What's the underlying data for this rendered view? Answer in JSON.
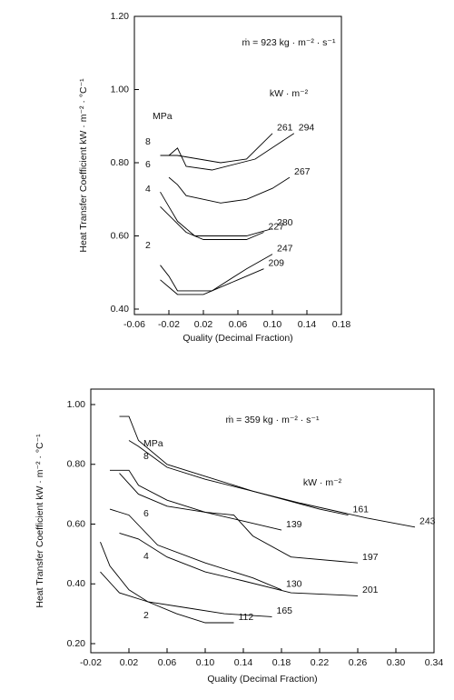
{
  "chart_data": [
    {
      "type": "line",
      "annotations": [
        "ṁ = 923 kg · m⁻² · s⁻¹",
        "kW · m⁻²",
        "MPa",
        "8",
        "6",
        "4",
        "2"
      ],
      "x_label": "Quality (Decimal Fraction)",
      "y_label": "Heat Transfer Coefficient kW · m⁻² · °C⁻¹",
      "xlim": [
        -0.06,
        0.18
      ],
      "xticks": [
        -0.06,
        -0.02,
        0.02,
        0.06,
        {
          "value": 0.1,
          "label": "0.10"
        },
        0.14,
        0.18
      ],
      "ylim": [
        0.4,
        1.2
      ],
      "yticks": [
        {
          "value": 0.4,
          "label": "0.40"
        },
        {
          "value": 0.6,
          "label": "0.60"
        },
        {
          "value": 0.8,
          "label": "0.80"
        },
        {
          "value": 1.0,
          "label": "1.00"
        },
        {
          "value": 1.2,
          "label": "1.20"
        }
      ],
      "series": [
        {
          "name": "261",
          "color": "#000000",
          "x": [
            -0.03,
            -0.01,
            0.04,
            0.07,
            0.1
          ],
          "values": [
            0.82,
            0.82,
            0.8,
            0.81,
            0.88
          ]
        },
        {
          "name": "294",
          "color": "#000000",
          "x": [
            -0.02,
            -0.01,
            0.0,
            0.03,
            0.08,
            0.125
          ],
          "values": [
            0.82,
            0.84,
            0.79,
            0.78,
            0.81,
            0.88
          ]
        },
        {
          "name": "267",
          "color": "#000000",
          "x": [
            -0.02,
            -0.01,
            0.0,
            0.04,
            0.07,
            0.1,
            0.12
          ],
          "values": [
            0.76,
            0.74,
            0.71,
            0.69,
            0.7,
            0.73,
            0.76
          ]
        },
        {
          "name": "280",
          "color": "#000000",
          "x": [
            -0.03,
            -0.02,
            -0.01,
            0.01,
            0.07,
            0.1
          ],
          "values": [
            0.72,
            0.68,
            0.64,
            0.6,
            0.6,
            0.62
          ]
        },
        {
          "name": "227",
          "color": "#000000",
          "x": [
            -0.03,
            0.0,
            0.02,
            0.07,
            0.09
          ],
          "values": [
            0.68,
            0.61,
            0.59,
            0.59,
            0.61
          ]
        },
        {
          "name": "247",
          "color": "#000000",
          "x": [
            -0.03,
            -0.02,
            -0.01,
            0.03,
            0.07,
            0.1
          ],
          "values": [
            0.52,
            0.49,
            0.45,
            0.45,
            0.51,
            0.55
          ]
        },
        {
          "name": "209",
          "color": "#000000",
          "x": [
            -0.03,
            -0.02,
            -0.01,
            0.02,
            0.06,
            0.09
          ],
          "values": [
            0.48,
            0.46,
            0.44,
            0.44,
            0.48,
            0.51
          ]
        }
      ]
    },
    {
      "type": "line",
      "annotations": [
        "ṁ = 359 kg · m⁻² · s⁻¹",
        "MPa",
        "8",
        "kW · m⁻²",
        "6",
        "4",
        "2"
      ],
      "x_label": "Quality (Decimal Fraction)",
      "y_label": "Heat Transfer Coefficient kW · m⁻² · °C⁻¹",
      "xlim": [
        -0.02,
        0.34
      ],
      "xticks": [
        -0.02,
        0.02,
        0.06,
        {
          "value": 0.1,
          "label": "0.10"
        },
        0.14,
        0.18,
        0.22,
        0.26,
        {
          "value": 0.3,
          "label": "0.30"
        },
        0.34
      ],
      "ylim": [
        0.2,
        1.0
      ],
      "yticks": [
        {
          "value": 0.2,
          "label": "0.20"
        },
        {
          "value": 0.4,
          "label": "0.40"
        },
        {
          "value": 0.6,
          "label": "0.60"
        },
        {
          "value": 0.8,
          "label": "0.80"
        },
        {
          "value": 1.0,
          "label": "1.00"
        }
      ],
      "series": [
        {
          "name": "161",
          "color": "#000000",
          "x": [
            0.01,
            0.02,
            0.03,
            0.06,
            0.1,
            0.15,
            0.22,
            0.25
          ],
          "values": [
            0.96,
            0.96,
            0.88,
            0.8,
            0.76,
            0.71,
            0.65,
            0.63
          ]
        },
        {
          "name": "243",
          "color": "#000000",
          "x": [
            0.02,
            0.03,
            0.06,
            0.1,
            0.15,
            0.2,
            0.27,
            0.32
          ],
          "values": [
            0.88,
            0.86,
            0.79,
            0.75,
            0.71,
            0.67,
            0.62,
            0.59
          ]
        },
        {
          "name": "139",
          "color": "#000000",
          "x": [
            0.0,
            0.02,
            0.03,
            0.06,
            0.1,
            0.14,
            0.18
          ],
          "values": [
            0.78,
            0.78,
            0.73,
            0.68,
            0.64,
            0.61,
            0.58
          ]
        },
        {
          "name": "197",
          "color": "#000000",
          "x": [
            0.01,
            0.03,
            0.06,
            0.1,
            0.13,
            0.15,
            0.19,
            0.26
          ],
          "values": [
            0.77,
            0.7,
            0.66,
            0.64,
            0.63,
            0.56,
            0.49,
            0.47
          ]
        },
        {
          "name": "130",
          "color": "#000000",
          "x": [
            0.0,
            0.02,
            0.05,
            0.1,
            0.15,
            0.18
          ],
          "values": [
            0.65,
            0.63,
            0.53,
            0.47,
            0.42,
            0.38
          ]
        },
        {
          "name": "201",
          "color": "#000000",
          "x": [
            0.01,
            0.03,
            0.06,
            0.1,
            0.14,
            0.19,
            0.26
          ],
          "values": [
            0.57,
            0.55,
            0.49,
            0.44,
            0.41,
            0.37,
            0.36
          ]
        },
        {
          "name": "165",
          "color": "#000000",
          "x": [
            -0.01,
            0.0,
            0.02,
            0.04,
            0.08,
            0.12,
            0.17
          ],
          "values": [
            0.54,
            0.46,
            0.38,
            0.34,
            0.32,
            0.3,
            0.29
          ]
        },
        {
          "name": "112",
          "color": "#000000",
          "x": [
            -0.01,
            0.01,
            0.04,
            0.07,
            0.1,
            0.13
          ],
          "values": [
            0.44,
            0.37,
            0.34,
            0.3,
            0.27,
            0.27
          ]
        }
      ]
    }
  ]
}
